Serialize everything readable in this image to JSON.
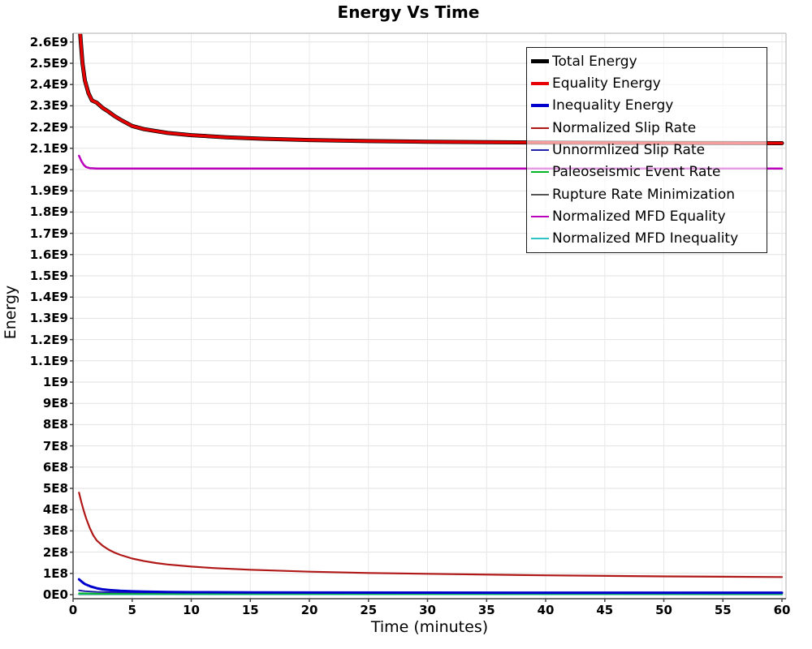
{
  "chart_data": {
    "type": "line",
    "title": "Energy Vs Time",
    "xlabel": "Time (minutes)",
    "ylabel": "Energy",
    "xlim": [
      0,
      60
    ],
    "ylim": [
      0,
      2600000000.0
    ],
    "grid": true,
    "legend_position": "top-right",
    "x_ticks": [
      0,
      5,
      10,
      15,
      20,
      25,
      30,
      35,
      40,
      45,
      50,
      55,
      60
    ],
    "y_tick_unit_e8": 100000000.0,
    "y_ticks": [
      [
        "2.6E9",
        26
      ],
      [
        "2.5E9",
        25
      ],
      [
        "2.4E9",
        24
      ],
      [
        "2.3E9",
        23
      ],
      [
        "2.2E9",
        22
      ],
      [
        "2.1E9",
        21
      ],
      [
        "2E9",
        20
      ],
      [
        "1.9E9",
        19
      ],
      [
        "1.8E9",
        18
      ],
      [
        "1.7E9",
        17
      ],
      [
        "1.6E9",
        16
      ],
      [
        "1.5E9",
        15
      ],
      [
        "1.4E9",
        14
      ],
      [
        "1.3E9",
        13
      ],
      [
        "1.2E9",
        12
      ],
      [
        "1.1E9",
        11
      ],
      [
        "1E9",
        10
      ],
      [
        "9E8",
        9
      ],
      [
        "8E8",
        8
      ],
      [
        "7E8",
        7
      ],
      [
        "6E8",
        6
      ],
      [
        "5E8",
        5
      ],
      [
        "4E8",
        4
      ],
      [
        "3E8",
        3
      ],
      [
        "2E8",
        2
      ],
      [
        "1E8",
        1
      ],
      [
        "0E0",
        0
      ]
    ],
    "draw_order": [
      6,
      8,
      5,
      4,
      2,
      7,
      3,
      0,
      1
    ],
    "series": [
      {
        "name": "Total Energy",
        "color": "#000000",
        "width": 5,
        "legend_stroke": 5,
        "points": [
          [
            0.5,
            2720000000.0
          ],
          [
            0.65,
            2600000000.0
          ],
          [
            0.8,
            2500000000.0
          ],
          [
            1.0,
            2420000000.0
          ],
          [
            1.3,
            2360000000.0
          ],
          [
            1.6,
            2325000000.0
          ],
          [
            2,
            2315000000.0
          ],
          [
            2.5,
            2290000000.0
          ],
          [
            3,
            2272000000.0
          ],
          [
            3.5,
            2252000000.0
          ],
          [
            4,
            2235000000.0
          ],
          [
            5,
            2205000000.0
          ],
          [
            6,
            2190000000.0
          ],
          [
            8,
            2172000000.0
          ],
          [
            10,
            2162000000.0
          ],
          [
            13,
            2152000000.0
          ],
          [
            16,
            2145000000.0
          ],
          [
            20,
            2139000000.0
          ],
          [
            25,
            2134000000.0
          ],
          [
            30,
            2131000000.0
          ],
          [
            40,
            2127000000.0
          ],
          [
            50,
            2125000000.0
          ],
          [
            60,
            2124000000.0
          ]
        ]
      },
      {
        "name": "Equality Energy",
        "color": "#e60000",
        "width": 3.5,
        "legend_stroke": 4,
        "points": [
          [
            0.5,
            2720000000.0
          ],
          [
            0.65,
            2600000000.0
          ],
          [
            0.8,
            2500000000.0
          ],
          [
            1.0,
            2420000000.0
          ],
          [
            1.3,
            2360000000.0
          ],
          [
            1.6,
            2325000000.0
          ],
          [
            2,
            2315000000.0
          ],
          [
            2.5,
            2290000000.0
          ],
          [
            3,
            2272000000.0
          ],
          [
            3.5,
            2252000000.0
          ],
          [
            4,
            2235000000.0
          ],
          [
            5,
            2205000000.0
          ],
          [
            6,
            2190000000.0
          ],
          [
            8,
            2172000000.0
          ],
          [
            10,
            2162000000.0
          ],
          [
            13,
            2152000000.0
          ],
          [
            16,
            2145000000.0
          ],
          [
            20,
            2139000000.0
          ],
          [
            25,
            2134000000.0
          ],
          [
            30,
            2131000000.0
          ],
          [
            40,
            2127000000.0
          ],
          [
            50,
            2125000000.0
          ],
          [
            60,
            2124000000.0
          ]
        ]
      },
      {
        "name": "Inequality Energy",
        "color": "#0000cc",
        "width": 3,
        "legend_stroke": 4,
        "points": [
          [
            0.5,
            72000000.0
          ],
          [
            0.8,
            58000000.0
          ],
          [
            1,
            50000000.0
          ],
          [
            1.5,
            38000000.0
          ],
          [
            2,
            30000000.0
          ],
          [
            2.5,
            25000000.0
          ],
          [
            3,
            22000000.0
          ],
          [
            4,
            18000000.0
          ],
          [
            5,
            15500000.0
          ],
          [
            6,
            14000000.0
          ],
          [
            8,
            12500000.0
          ],
          [
            10,
            11500000.0
          ],
          [
            15,
            10500000.0
          ],
          [
            20,
            10000000.0
          ],
          [
            30,
            9500000.0
          ],
          [
            40,
            9200000.0
          ],
          [
            50,
            9000000.0
          ],
          [
            60,
            9000000.0
          ]
        ]
      },
      {
        "name": "Normalized Slip Rate",
        "color": "#b01818",
        "width": 2.2,
        "legend_stroke": 2.5,
        "points": [
          [
            0.5,
            480000000.0
          ],
          [
            0.7,
            435000000.0
          ],
          [
            0.9,
            395000000.0
          ],
          [
            1.1,
            360000000.0
          ],
          [
            1.4,
            315000000.0
          ],
          [
            1.7,
            280000000.0
          ],
          [
            2,
            255000000.0
          ],
          [
            2.5,
            230000000.0
          ],
          [
            3,
            212000000.0
          ],
          [
            3.5,
            198000000.0
          ],
          [
            4,
            187000000.0
          ],
          [
            5,
            170000000.0
          ],
          [
            6,
            158000000.0
          ],
          [
            7,
            149000000.0
          ],
          [
            8,
            142000000.0
          ],
          [
            10,
            132000000.0
          ],
          [
            12,
            125000000.0
          ],
          [
            15,
            117000000.0
          ],
          [
            20,
            108000000.0
          ],
          [
            25,
            102000000.0
          ],
          [
            30,
            98000000.0
          ],
          [
            40,
            91000000.0
          ],
          [
            50,
            86000000.0
          ],
          [
            60,
            83000000.0
          ]
        ]
      },
      {
        "name": "Unnormlized Slip Rate",
        "color": "#2222aa",
        "width": 2,
        "legend_stroke": 2.5,
        "points": [
          [
            0.5,
            20000000.0
          ],
          [
            1,
            16000000.0
          ],
          [
            2,
            13000000.0
          ],
          [
            3,
            11500000.0
          ],
          [
            5,
            10500000.0
          ],
          [
            10,
            10000000.0
          ],
          [
            20,
            9500000.0
          ],
          [
            60,
            9000000.0
          ]
        ]
      },
      {
        "name": "Paleoseismic Event Rate",
        "color": "#00b42a",
        "width": 2,
        "legend_stroke": 2.5,
        "points": [
          [
            0.5,
            6000000.0
          ],
          [
            2,
            5000000.0
          ],
          [
            10,
            4500000.0
          ],
          [
            60,
            4500000.0
          ]
        ]
      },
      {
        "name": "Rupture Rate Minimization",
        "color": "#555555",
        "width": 2,
        "legend_stroke": 2.5,
        "points": [
          [
            0.5,
            1500000.0
          ],
          [
            60,
            1000000.0
          ]
        ]
      },
      {
        "name": "Normalized MFD Equality",
        "color": "#bb00bb",
        "width": 2.5,
        "legend_stroke": 2.5,
        "points": [
          [
            0.5,
            2065000000.0
          ],
          [
            0.7,
            2040000000.0
          ],
          [
            0.9,
            2022000000.0
          ],
          [
            1.1,
            2012000000.0
          ],
          [
            1.4,
            2007000000.0
          ],
          [
            2,
            2005000000.0
          ],
          [
            3,
            2005000000.0
          ],
          [
            10,
            2005000000.0
          ],
          [
            60,
            2005000000.0
          ]
        ]
      },
      {
        "name": "Normalized MFD Inequality",
        "color": "#2cc4c4",
        "width": 2,
        "legend_stroke": 2.5,
        "points": [
          [
            0.5,
            2500000.0
          ],
          [
            5,
            2000000.0
          ],
          [
            60,
            2000000.0
          ]
        ]
      }
    ]
  }
}
